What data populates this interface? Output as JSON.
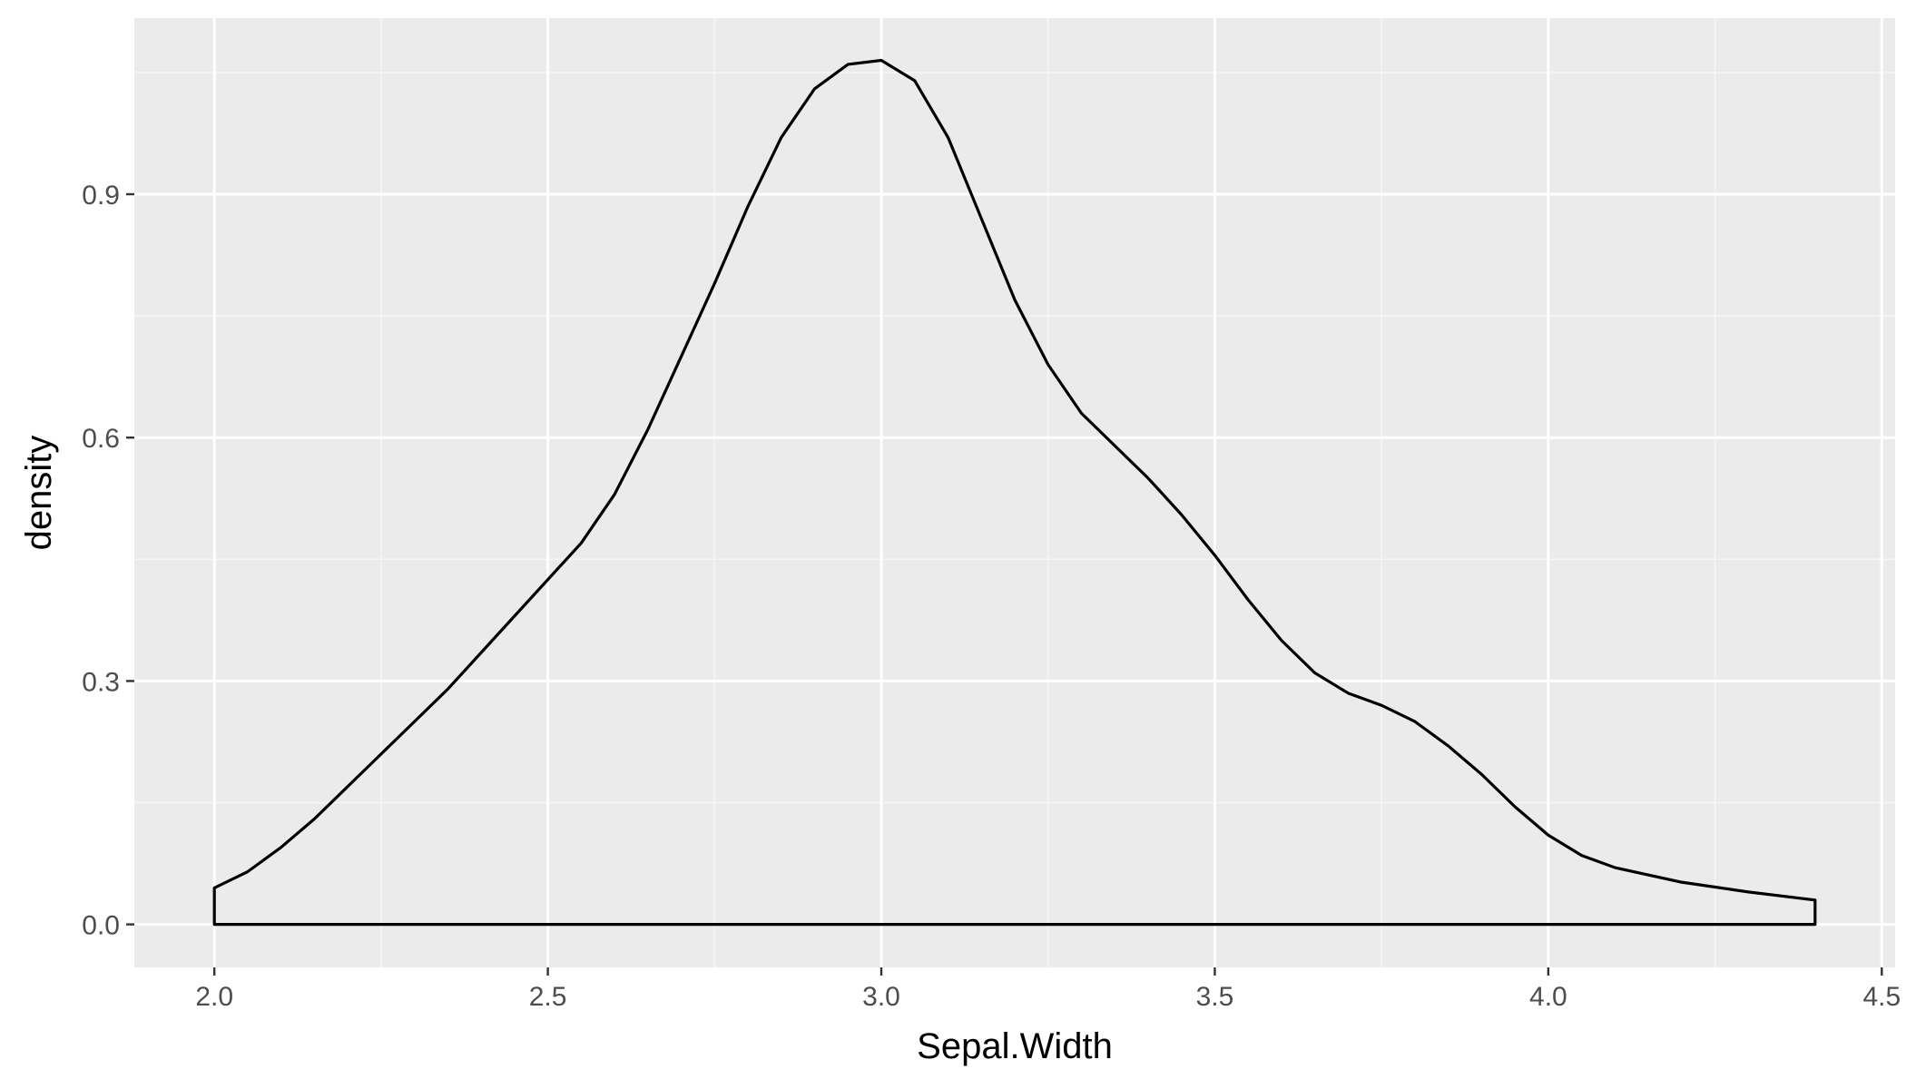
{
  "chart_data": {
    "type": "area",
    "title": "",
    "xlabel": "Sepal.Width",
    "ylabel": "density",
    "xlim": [
      1.88,
      4.52
    ],
    "ylim": [
      -0.053,
      1.117
    ],
    "x_ticks": [
      2.0,
      2.5,
      3.0,
      3.5,
      4.0,
      4.5
    ],
    "x_tick_labels": [
      "2.0",
      "2.5",
      "3.0",
      "3.5",
      "4.0",
      "4.5"
    ],
    "y_ticks": [
      0.0,
      0.3,
      0.6,
      0.9
    ],
    "y_tick_labels": [
      "0.0",
      "0.3",
      "0.6",
      "0.9"
    ],
    "x_minor_ticks": [
      2.25,
      2.75,
      3.25,
      3.75,
      4.25
    ],
    "y_minor_ticks": [
      0.15,
      0.45,
      0.75,
      1.05
    ],
    "grid": true,
    "colors": {
      "panel_background": "#ebebeb",
      "grid_major": "#ffffff",
      "grid_minor": "#f5f5f5",
      "line": "#000000",
      "fill": "none",
      "tick_mark": "#333333"
    },
    "series": [
      {
        "x": [
          2.0,
          2.05,
          2.1,
          2.15,
          2.2,
          2.25,
          2.3,
          2.35,
          2.4,
          2.45,
          2.5,
          2.55,
          2.6,
          2.65,
          2.7,
          2.75,
          2.8,
          2.85,
          2.9,
          2.95,
          3.0,
          3.05,
          3.1,
          3.15,
          3.2,
          3.25,
          3.3,
          3.35,
          3.4,
          3.45,
          3.5,
          3.55,
          3.6,
          3.65,
          3.7,
          3.75,
          3.8,
          3.85,
          3.9,
          3.95,
          4.0,
          4.05,
          4.1,
          4.2,
          4.3,
          4.4
        ],
        "y": [
          0.045,
          0.065,
          0.095,
          0.13,
          0.17,
          0.21,
          0.25,
          0.29,
          0.335,
          0.38,
          0.425,
          0.47,
          0.53,
          0.61,
          0.7,
          0.79,
          0.885,
          0.97,
          1.03,
          1.06,
          1.065,
          1.04,
          0.97,
          0.87,
          0.77,
          0.69,
          0.63,
          0.59,
          0.55,
          0.505,
          0.455,
          0.4,
          0.35,
          0.31,
          0.285,
          0.27,
          0.25,
          0.22,
          0.185,
          0.145,
          0.11,
          0.085,
          0.07,
          0.052,
          0.04,
          0.03
        ]
      }
    ]
  }
}
